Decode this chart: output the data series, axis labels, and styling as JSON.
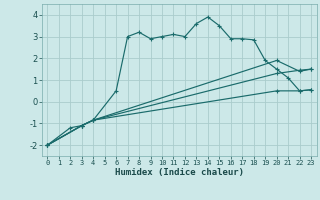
{
  "xlabel": "Humidex (Indice chaleur)",
  "background_color": "#cce8e8",
  "grid_color": "#aacccc",
  "line_color": "#1a6b6b",
  "xlim": [
    -0.5,
    23.5
  ],
  "ylim": [
    -2.5,
    4.5
  ],
  "yticks": [
    -2,
    -1,
    0,
    1,
    2,
    3,
    4
  ],
  "xticks": [
    0,
    1,
    2,
    3,
    4,
    5,
    6,
    7,
    8,
    9,
    10,
    11,
    12,
    13,
    14,
    15,
    16,
    17,
    18,
    19,
    20,
    21,
    22,
    23
  ],
  "series": [
    {
      "x": [
        0,
        2,
        3,
        4,
        6,
        7,
        8,
        9,
        10,
        11,
        12,
        13,
        14,
        15,
        16,
        17,
        18,
        19,
        20,
        21,
        22,
        23
      ],
      "y": [
        -2.0,
        -1.2,
        -1.1,
        -0.85,
        0.5,
        3.0,
        3.2,
        2.9,
        3.0,
        3.1,
        3.0,
        3.6,
        3.9,
        3.5,
        2.9,
        2.9,
        2.85,
        1.9,
        1.5,
        1.1,
        0.5,
        0.55
      ],
      "style": "solid"
    },
    {
      "x": [
        0,
        3,
        4,
        20,
        22,
        23
      ],
      "y": [
        -2.0,
        -1.1,
        -0.85,
        1.9,
        1.4,
        1.5
      ],
      "style": "solid"
    },
    {
      "x": [
        0,
        3,
        4,
        20,
        22,
        23
      ],
      "y": [
        -2.0,
        -1.1,
        -0.85,
        1.3,
        1.45,
        1.5
      ],
      "style": "solid"
    },
    {
      "x": [
        0,
        3,
        4,
        20,
        22,
        23
      ],
      "y": [
        -2.0,
        -1.1,
        -0.85,
        0.5,
        0.5,
        0.55
      ],
      "style": "solid"
    }
  ]
}
